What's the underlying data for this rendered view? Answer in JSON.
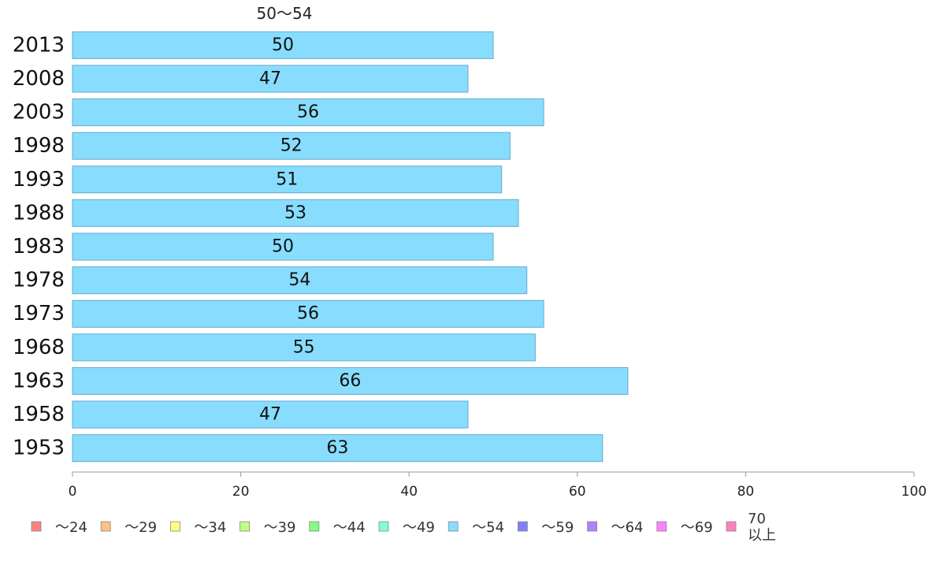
{
  "chart_data": {
    "type": "bar",
    "orientation": "horizontal",
    "title": "50〜54",
    "categories": [
      "2013",
      "2008",
      "2003",
      "1998",
      "1993",
      "1988",
      "1983",
      "1978",
      "1973",
      "1968",
      "1963",
      "1958",
      "1953"
    ],
    "values": [
      50,
      47,
      56,
      52,
      51,
      53,
      50,
      54,
      56,
      55,
      66,
      47,
      63
    ],
    "xlim": [
      0,
      100
    ],
    "x_ticks": [
      "0",
      "20",
      "40",
      "60",
      "80",
      "100"
    ],
    "grid": false,
    "bar_color": "#88ddff",
    "bar_stroke": "#6aaac8",
    "legend_position": "bottom",
    "legend": [
      {
        "label": "〜24",
        "color": "#ff8080"
      },
      {
        "label": "〜29",
        "color": "#ffc080"
      },
      {
        "label": "〜34",
        "color": "#ffff80"
      },
      {
        "label": "〜39",
        "color": "#c0ff80"
      },
      {
        "label": "〜44",
        "color": "#80ff80"
      },
      {
        "label": "〜49",
        "color": "#80ffd0"
      },
      {
        "label": "〜54",
        "color": "#88ddff"
      },
      {
        "label": "〜59",
        "color": "#8080ff"
      },
      {
        "label": "〜64",
        "color": "#b080ff"
      },
      {
        "label": "〜69",
        "color": "#ff80ff"
      },
      {
        "label": "70\n以上",
        "color": "#ff80c0"
      }
    ]
  }
}
